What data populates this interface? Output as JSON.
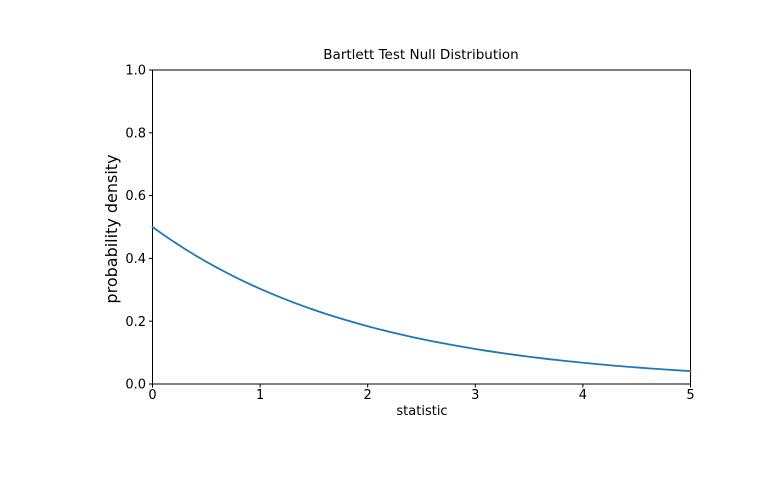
{
  "figure": {
    "background": "#ffffff"
  },
  "chart_data": {
    "type": "line",
    "title": "Bartlett Test Null Distribution",
    "xlabel": "statistic",
    "ylabel": "probability density",
    "xlim": [
      0,
      5
    ],
    "ylim": [
      0.0,
      1.0
    ],
    "grid": false,
    "legend": null,
    "axes_color": "#000000",
    "text_color": "#000000",
    "xticks": {
      "values": [
        0,
        1,
        2,
        3,
        4,
        5
      ],
      "labels": [
        "0",
        "1",
        "2",
        "3",
        "4",
        "5"
      ]
    },
    "yticks": {
      "values": [
        0.0,
        0.2,
        0.4,
        0.6,
        0.8,
        1.0
      ],
      "labels": [
        "0.0",
        "0.2",
        "0.4",
        "0.6",
        "0.8",
        "1.0"
      ]
    },
    "series": [
      {
        "color": "#1f77b4",
        "line_width": 1.8,
        "x": [
          0.0,
          0.1,
          0.2,
          0.3,
          0.4,
          0.5,
          0.6,
          0.7,
          0.8,
          0.9,
          1.0,
          1.1,
          1.2,
          1.3,
          1.4,
          1.5,
          1.6,
          1.7,
          1.8,
          1.9,
          2.0,
          2.1,
          2.2,
          2.3,
          2.4,
          2.5,
          2.6,
          2.7,
          2.8,
          2.9,
          3.0,
          3.1,
          3.2,
          3.3,
          3.4,
          3.5,
          3.6,
          3.7,
          3.8,
          3.9,
          4.0,
          4.1,
          4.2,
          4.3,
          4.4,
          4.5,
          4.6,
          4.7,
          4.8,
          4.9,
          5.0
        ],
        "y": [
          0.5,
          0.47561,
          0.45242,
          0.43035,
          0.40937,
          0.3894,
          0.37041,
          0.35234,
          0.33516,
          0.31881,
          0.30327,
          0.28847,
          0.27441,
          0.26102,
          0.24829,
          0.23618,
          0.22466,
          0.21371,
          0.20328,
          0.19337,
          0.18394,
          0.17497,
          0.16644,
          0.15832,
          0.1506,
          0.14325,
          0.13627,
          0.12962,
          0.1233,
          0.11729,
          0.11157,
          0.10612,
          0.10095,
          0.09602,
          0.09134,
          0.08689,
          0.08265,
          0.07862,
          0.07478,
          0.07114,
          0.06767,
          0.06437,
          0.06123,
          0.05824,
          0.0554,
          0.0527,
          0.05013,
          0.04768,
          0.04536,
          0.04315,
          0.04104
        ]
      }
    ]
  }
}
